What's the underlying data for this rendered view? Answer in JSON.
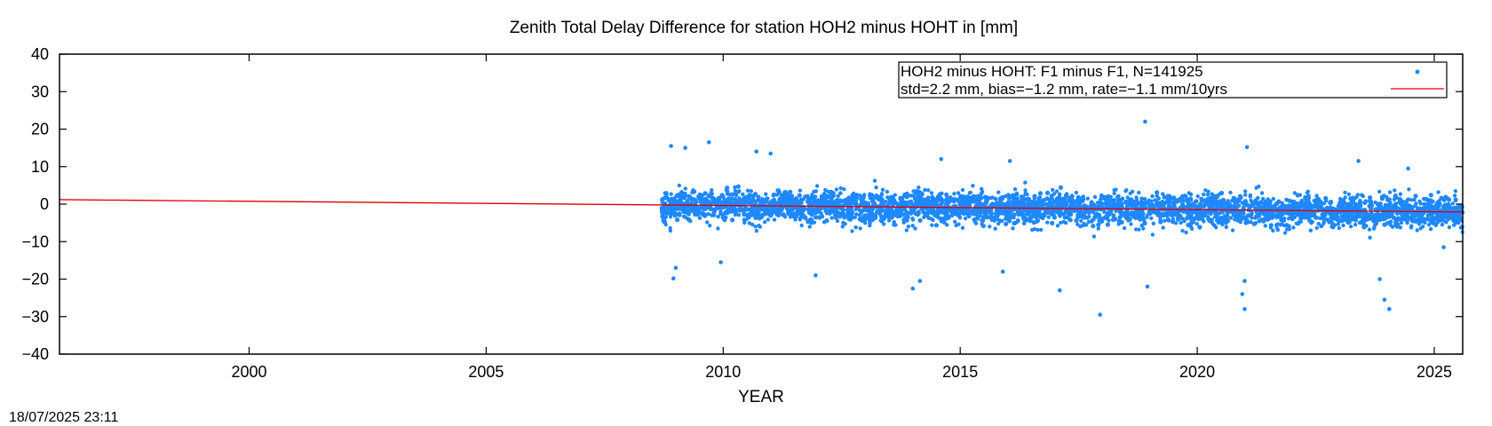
{
  "chart_data": {
    "type": "scatter",
    "title": "Zenith Total Delay Difference for station HOH2 minus HOHT in [mm]",
    "xlabel": "YEAR",
    "ylabel": "",
    "xlim": [
      1996.0,
      2025.6
    ],
    "ylim": [
      -40,
      40
    ],
    "x_ticks": [
      2000,
      2005,
      2010,
      2015,
      2020,
      2025
    ],
    "y_ticks": [
      40,
      30,
      20,
      10,
      0,
      -10,
      -20,
      -30,
      -40
    ],
    "grid": false,
    "legend_position": "top-right",
    "legend": [
      {
        "label": "HOH2 minus HOHT: F1 minus F1, N=141925",
        "marker": "point"
      },
      {
        "label": "std=2.2 mm, bias=−1.2 mm, rate=−1.1 mm/10yrs",
        "marker": "line"
      }
    ],
    "series": [
      {
        "name": "HOH2 minus HOHT: F1 minus F1, N=141925",
        "kind": "points",
        "color": "#1e88ff",
        "n": 141925,
        "x_range": [
          2008.7,
          2025.6
        ],
        "std_mm": 2.2,
        "bias_mm": -1.2,
        "outliers": [
          [
            2008.9,
            15.5
          ],
          [
            2008.95,
            -19.8
          ],
          [
            2009.0,
            -17.0
          ],
          [
            2009.2,
            15.0
          ],
          [
            2009.7,
            16.5
          ],
          [
            2009.95,
            -15.5
          ],
          [
            2010.7,
            14.0
          ],
          [
            2011.0,
            13.5
          ],
          [
            2011.95,
            -19.0
          ],
          [
            2014.0,
            -22.5
          ],
          [
            2014.15,
            -20.5
          ],
          [
            2014.6,
            12.0
          ],
          [
            2015.9,
            -18.0
          ],
          [
            2016.05,
            11.5
          ],
          [
            2017.1,
            -23.0
          ],
          [
            2017.95,
            -29.5
          ],
          [
            2018.9,
            22.0
          ],
          [
            2018.95,
            -22.0
          ],
          [
            2020.95,
            -24.0
          ],
          [
            2021.0,
            -28.0
          ],
          [
            2021.05,
            15.2
          ],
          [
            2021.0,
            -20.5
          ],
          [
            2023.4,
            11.5
          ],
          [
            2023.85,
            -20.0
          ],
          [
            2023.95,
            -25.5
          ],
          [
            2024.05,
            -28.0
          ],
          [
            2024.45,
            9.5
          ],
          [
            2025.2,
            -11.5
          ]
        ]
      },
      {
        "name": "std=2.2 mm, bias=−1.2 mm, rate=−1.1 mm/10yrs",
        "kind": "line",
        "color": "#dd0000",
        "x": [
          1996.0,
          2025.6
        ],
        "y": [
          1.2,
          -2.1
        ]
      }
    ]
  },
  "footer": {
    "timestamp": "18/07/2025 23:11"
  }
}
